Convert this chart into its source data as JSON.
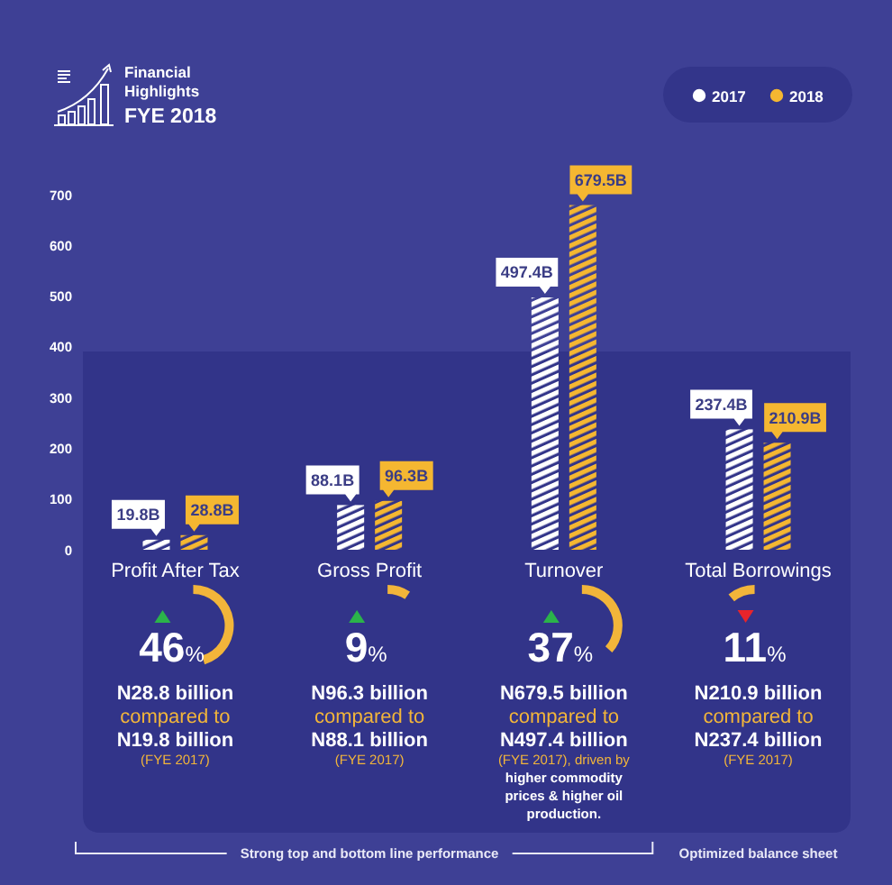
{
  "chart_data": {
    "type": "bar",
    "title": "Financial Highlights",
    "subtitle": "FYE 2018",
    "categories": [
      "Profit After Tax",
      "Gross Profit",
      "Turnover",
      "Total Borrowings"
    ],
    "series": [
      {
        "name": "2017",
        "color": "#ffffff",
        "values": [
          19.8,
          88.1,
          497.4,
          237.4
        ],
        "value_labels": [
          "19.8B",
          "88.1B",
          "497.4B",
          "237.4B"
        ]
      },
      {
        "name": "2018",
        "color": "#f5b731",
        "values": [
          28.8,
          96.3,
          679.5,
          210.9
        ],
        "value_labels": [
          "28.8B",
          "96.3B",
          "679.5B",
          "210.9B"
        ]
      }
    ],
    "ylim": [
      0,
      700
    ],
    "yticks": [
      0,
      100,
      200,
      300,
      400,
      500,
      600,
      700
    ],
    "legend": "top right",
    "annotations": [
      "46%",
      "N28.8 billion",
      "compared to",
      "N19.8 billion",
      "(FYE 2017)",
      "9%",
      "N96.3 billion",
      "compared to",
      "N88.1 billion",
      "(FYE 2017)",
      "37%",
      "N679.5 billion",
      "compared to",
      "N497.4 billion",
      "(FYE 2017), driven by higher commodity prices & higher oil production.",
      "11%",
      "N210.9 billion",
      "compared to",
      "N237.4 billion",
      "(FYE 2017)",
      "Strong top and bottom line performance",
      "Optimized balance sheet"
    ]
  }
}
